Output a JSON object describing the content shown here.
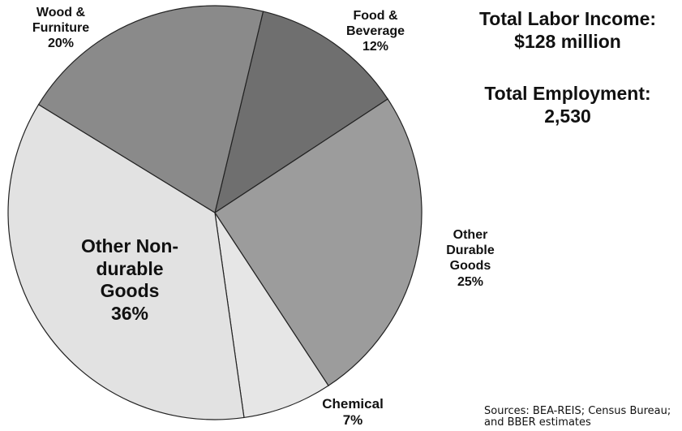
{
  "chart_data": {
    "type": "pie",
    "categories": [
      "Food & Beverage",
      "Other Durable Goods",
      "Chemical",
      "Other Non-durable Goods",
      "Wood & Furniture"
    ],
    "values": [
      12,
      25,
      7,
      36,
      20
    ],
    "value_labels": [
      "12%",
      "25%",
      "7%",
      "36%",
      "20%"
    ],
    "colors": [
      "#6f6f6f",
      "#9c9c9c",
      "#e6e6e6",
      "#e2e2e2",
      "#8a8a8a"
    ],
    "annotations": [
      "Total Labor Income:",
      "$128 million",
      "Total Employment:",
      "2,530"
    ],
    "source": "Sources: BEA-REIS; Census Bureau; and BBER estimates"
  }
}
